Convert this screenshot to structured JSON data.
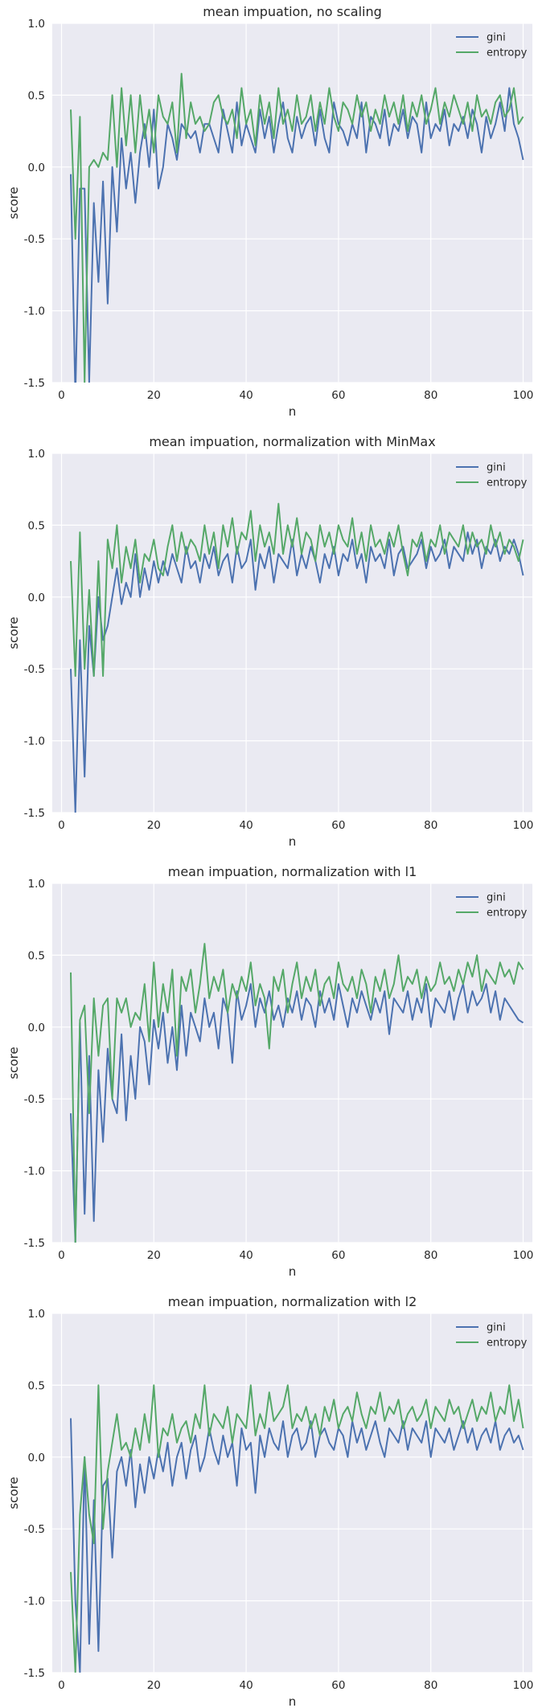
{
  "colors": {
    "background": "#eaeaf2",
    "grid": "#ffffff",
    "gini": "#4c72b0",
    "entropy": "#55a868"
  },
  "chart_data": [
    {
      "type": "line",
      "title": "mean impuation, no scaling",
      "xlabel": "n",
      "ylabel": "score",
      "xlim": [
        -2,
        102
      ],
      "ylim": [
        -1.5,
        1.0
      ],
      "x_ticks": [
        "0",
        "20",
        "40",
        "60",
        "80",
        "100"
      ],
      "y_ticks": [
        "1.0",
        "0.5",
        "0.0",
        "-0.5",
        "-1.0",
        "-1.5"
      ],
      "grid": true,
      "legend": "top-right",
      "series": [
        {
          "name": "gini",
          "x_start": 2,
          "x_step": 1,
          "values": [
            -0.05,
            -1.6,
            -0.15,
            -0.15,
            -1.5,
            -0.25,
            -0.8,
            -0.1,
            -0.95,
            0.0,
            -0.45,
            0.2,
            -0.15,
            0.1,
            -0.25,
            0.1,
            0.3,
            0.0,
            0.4,
            -0.15,
            0.0,
            0.3,
            0.2,
            0.05,
            0.3,
            0.25,
            0.2,
            0.25,
            0.1,
            0.3,
            0.3,
            0.2,
            0.1,
            0.4,
            0.25,
            0.1,
            0.45,
            0.15,
            0.3,
            0.2,
            0.1,
            0.4,
            0.2,
            0.35,
            0.1,
            0.3,
            0.45,
            0.2,
            0.1,
            0.35,
            0.2,
            0.3,
            0.35,
            0.15,
            0.4,
            0.2,
            0.1,
            0.45,
            0.3,
            0.25,
            0.15,
            0.3,
            0.2,
            0.45,
            0.1,
            0.35,
            0.3,
            0.2,
            0.4,
            0.15,
            0.3,
            0.25,
            0.4,
            0.2,
            0.35,
            0.3,
            0.1,
            0.45,
            0.2,
            0.3,
            0.25,
            0.4,
            0.15,
            0.3,
            0.25,
            0.35,
            0.2,
            0.4,
            0.3,
            0.1,
            0.35,
            0.2,
            0.3,
            0.45,
            0.25,
            0.55,
            0.3,
            0.2,
            0.05
          ]
        },
        {
          "name": "entropy",
          "x_start": 2,
          "x_step": 1,
          "values": [
            0.4,
            -0.5,
            0.35,
            -1.5,
            0.0,
            0.05,
            0.0,
            0.1,
            0.05,
            0.5,
            0.0,
            0.55,
            0.15,
            0.5,
            0.1,
            0.5,
            0.2,
            0.4,
            0.1,
            0.5,
            0.35,
            0.3,
            0.45,
            0.1,
            0.65,
            0.2,
            0.45,
            0.3,
            0.35,
            0.25,
            0.3,
            0.45,
            0.5,
            0.35,
            0.3,
            0.4,
            0.2,
            0.55,
            0.3,
            0.4,
            0.15,
            0.5,
            0.3,
            0.45,
            0.2,
            0.55,
            0.3,
            0.4,
            0.25,
            0.5,
            0.3,
            0.35,
            0.5,
            0.25,
            0.45,
            0.3,
            0.55,
            0.35,
            0.25,
            0.45,
            0.4,
            0.3,
            0.5,
            0.35,
            0.45,
            0.25,
            0.4,
            0.3,
            0.5,
            0.35,
            0.45,
            0.3,
            0.5,
            0.25,
            0.45,
            0.35,
            0.5,
            0.3,
            0.4,
            0.55,
            0.3,
            0.45,
            0.35,
            0.5,
            0.4,
            0.3,
            0.45,
            0.25,
            0.5,
            0.35,
            0.4,
            0.3,
            0.45,
            0.5,
            0.35,
            0.4,
            0.55,
            0.3,
            0.35
          ]
        }
      ]
    },
    {
      "type": "line",
      "title": "mean impuation, normalization with MinMax",
      "xlabel": "n",
      "ylabel": "score",
      "xlim": [
        -2,
        102
      ],
      "ylim": [
        -1.5,
        1.0
      ],
      "x_ticks": [
        "0",
        "20",
        "40",
        "60",
        "80",
        "100"
      ],
      "y_ticks": [
        "1.0",
        "0.5",
        "0.0",
        "-0.5",
        "-1.0",
        "-1.5"
      ],
      "grid": true,
      "legend": "top-right",
      "series": [
        {
          "name": "gini",
          "x_start": 2,
          "x_step": 1,
          "values": [
            -0.5,
            -1.5,
            -0.3,
            -1.25,
            -0.2,
            -0.55,
            0.0,
            -0.3,
            -0.2,
            0.0,
            0.2,
            -0.05,
            0.1,
            0.0,
            0.3,
            0.0,
            0.2,
            0.05,
            0.25,
            0.1,
            0.25,
            0.15,
            0.3,
            0.2,
            0.1,
            0.35,
            0.2,
            0.25,
            0.1,
            0.3,
            0.2,
            0.35,
            0.15,
            0.25,
            0.3,
            0.1,
            0.35,
            0.2,
            0.25,
            0.4,
            0.05,
            0.3,
            0.2,
            0.35,
            0.1,
            0.3,
            0.25,
            0.2,
            0.4,
            0.15,
            0.3,
            0.2,
            0.35,
            0.25,
            0.1,
            0.3,
            0.2,
            0.35,
            0.15,
            0.3,
            0.25,
            0.4,
            0.2,
            0.3,
            0.1,
            0.35,
            0.25,
            0.3,
            0.2,
            0.4,
            0.15,
            0.3,
            0.35,
            0.2,
            0.25,
            0.3,
            0.4,
            0.2,
            0.35,
            0.25,
            0.3,
            0.4,
            0.2,
            0.35,
            0.3,
            0.25,
            0.45,
            0.3,
            0.4,
            0.2,
            0.35,
            0.3,
            0.4,
            0.25,
            0.35,
            0.3,
            0.4,
            0.3,
            0.15
          ]
        },
        {
          "name": "entropy",
          "x_start": 2,
          "x_step": 1,
          "values": [
            0.25,
            -0.55,
            0.45,
            -0.5,
            0.05,
            -0.55,
            0.25,
            -0.55,
            0.4,
            0.2,
            0.5,
            0.1,
            0.35,
            0.2,
            0.4,
            0.1,
            0.3,
            0.25,
            0.4,
            0.2,
            0.15,
            0.35,
            0.5,
            0.25,
            0.45,
            0.3,
            0.4,
            0.35,
            0.25,
            0.5,
            0.3,
            0.45,
            0.2,
            0.5,
            0.35,
            0.55,
            0.3,
            0.45,
            0.4,
            0.6,
            0.25,
            0.5,
            0.35,
            0.45,
            0.3,
            0.65,
            0.3,
            0.5,
            0.35,
            0.55,
            0.3,
            0.45,
            0.4,
            0.25,
            0.5,
            0.35,
            0.45,
            0.3,
            0.5,
            0.4,
            0.35,
            0.55,
            0.3,
            0.45,
            0.25,
            0.5,
            0.35,
            0.4,
            0.3,
            0.45,
            0.35,
            0.5,
            0.3,
            0.15,
            0.4,
            0.35,
            0.45,
            0.25,
            0.4,
            0.35,
            0.5,
            0.3,
            0.45,
            0.4,
            0.35,
            0.5,
            0.3,
            0.45,
            0.35,
            0.4,
            0.3,
            0.5,
            0.35,
            0.45,
            0.3,
            0.4,
            0.35,
            0.25,
            0.4
          ]
        }
      ]
    },
    {
      "type": "line",
      "title": "mean impuation, normalization with l1",
      "xlabel": "n",
      "ylabel": "score",
      "xlim": [
        -2,
        102
      ],
      "ylim": [
        -1.5,
        1.0
      ],
      "x_ticks": [
        "0",
        "20",
        "40",
        "60",
        "80",
        "100"
      ],
      "y_ticks": [
        "1.0",
        "0.5",
        "0.0",
        "-0.5",
        "-1.0",
        "-1.5"
      ],
      "grid": true,
      "legend": "top-right",
      "series": [
        {
          "name": "gini",
          "x_start": 2,
          "x_step": 1,
          "values": [
            -0.6,
            -1.5,
            0.03,
            -1.3,
            -0.2,
            -1.35,
            -0.3,
            -0.8,
            -0.15,
            -0.5,
            -0.6,
            -0.05,
            -0.65,
            -0.2,
            -0.5,
            0.0,
            -0.1,
            -0.4,
            0.05,
            -0.15,
            0.1,
            -0.25,
            0.0,
            -0.3,
            0.15,
            -0.2,
            0.1,
            0.0,
            -0.1,
            0.2,
            0.0,
            0.1,
            -0.15,
            0.2,
            0.1,
            -0.25,
            0.25,
            0.05,
            0.15,
            0.3,
            0.0,
            0.2,
            0.1,
            0.25,
            0.05,
            0.15,
            0.0,
            0.2,
            0.1,
            0.25,
            0.05,
            0.2,
            0.15,
            0.0,
            0.25,
            0.1,
            0.2,
            0.05,
            0.3,
            0.15,
            0.0,
            0.2,
            0.1,
            0.25,
            0.15,
            0.05,
            0.2,
            0.1,
            0.25,
            -0.05,
            0.2,
            0.15,
            0.1,
            0.25,
            0.05,
            0.2,
            0.1,
            0.3,
            0.0,
            0.2,
            0.15,
            0.1,
            0.25,
            0.05,
            0.2,
            0.3,
            0.1,
            0.25,
            0.15,
            0.2,
            0.3,
            0.1,
            0.25,
            0.05,
            0.2,
            0.15,
            0.1,
            0.05,
            0.03
          ]
        },
        {
          "name": "entropy",
          "x_start": 2,
          "x_step": 1,
          "values": [
            0.38,
            -1.5,
            0.05,
            0.15,
            -0.6,
            0.2,
            -0.2,
            0.15,
            0.2,
            -0.5,
            0.2,
            0.1,
            0.2,
            0.0,
            0.1,
            0.05,
            0.3,
            -0.1,
            0.45,
            0.0,
            0.3,
            0.1,
            0.4,
            -0.2,
            0.35,
            0.25,
            0.4,
            0.1,
            0.3,
            0.58,
            0.2,
            0.35,
            0.25,
            0.4,
            0.1,
            0.3,
            0.2,
            0.35,
            0.25,
            0.45,
            0.15,
            0.3,
            0.2,
            -0.15,
            0.35,
            0.25,
            0.4,
            0.1,
            0.3,
            0.45,
            0.2,
            0.35,
            0.25,
            0.4,
            0.15,
            0.3,
            0.35,
            0.2,
            0.45,
            0.3,
            0.25,
            0.35,
            0.2,
            0.4,
            0.3,
            0.1,
            0.35,
            0.25,
            0.4,
            0.2,
            0.3,
            0.5,
            0.25,
            0.35,
            0.3,
            0.4,
            0.2,
            0.35,
            0.25,
            0.3,
            0.45,
            0.3,
            0.35,
            0.25,
            0.4,
            0.3,
            0.45,
            0.35,
            0.5,
            0.25,
            0.4,
            0.35,
            0.3,
            0.45,
            0.35,
            0.4,
            0.3,
            0.45,
            0.4
          ]
        }
      ]
    },
    {
      "type": "line",
      "title": "mean impuation, normalization with l2",
      "xlabel": "n",
      "ylabel": "score",
      "xlim": [
        -2,
        102
      ],
      "ylim": [
        -1.5,
        1.0
      ],
      "x_ticks": [
        "0",
        "20",
        "40",
        "60",
        "80",
        "100"
      ],
      "y_ticks": [
        "1.0",
        "0.5",
        "0.0",
        "-0.5",
        "-1.0",
        "-1.5"
      ],
      "grid": true,
      "legend": "top-right",
      "series": [
        {
          "name": "gini",
          "x_start": 2,
          "x_step": 1,
          "values": [
            0.27,
            -1.0,
            -1.5,
            0.0,
            -1.3,
            -0.3,
            -1.35,
            -0.2,
            -0.15,
            -0.7,
            -0.1,
            0.0,
            -0.2,
            0.05,
            -0.35,
            -0.05,
            -0.25,
            0.0,
            -0.15,
            0.05,
            -0.1,
            0.1,
            -0.2,
            0.0,
            0.1,
            -0.15,
            0.05,
            0.15,
            -0.1,
            0.0,
            0.2,
            0.05,
            -0.05,
            0.15,
            0.0,
            0.1,
            -0.2,
            0.2,
            0.05,
            0.1,
            -0.25,
            0.15,
            0.0,
            0.2,
            0.1,
            0.05,
            0.25,
            0.0,
            0.15,
            0.2,
            0.05,
            0.1,
            0.25,
            0.0,
            0.15,
            0.2,
            0.1,
            0.05,
            0.2,
            0.15,
            0.0,
            0.25,
            0.1,
            0.2,
            0.05,
            0.15,
            0.25,
            0.1,
            0.0,
            0.2,
            0.15,
            0.1,
            0.25,
            0.05,
            0.2,
            0.15,
            0.1,
            0.25,
            0.0,
            0.2,
            0.15,
            0.1,
            0.2,
            0.05,
            0.15,
            0.25,
            0.1,
            0.2,
            0.05,
            0.15,
            0.2,
            0.1,
            0.25,
            0.05,
            0.15,
            0.2,
            0.1,
            0.15,
            0.05
          ]
        },
        {
          "name": "entropy",
          "x_start": 2,
          "x_step": 1,
          "values": [
            -0.8,
            -1.5,
            -0.4,
            0.0,
            -0.4,
            -0.6,
            0.5,
            -0.5,
            -0.1,
            0.1,
            0.3,
            0.05,
            0.1,
            0.0,
            0.2,
            0.05,
            0.3,
            0.1,
            0.5,
            0.0,
            0.2,
            0.15,
            0.3,
            0.1,
            0.2,
            0.25,
            0.1,
            0.3,
            0.2,
            0.5,
            0.15,
            0.3,
            0.25,
            0.2,
            0.35,
            0.1,
            0.3,
            0.25,
            0.2,
            0.5,
            0.15,
            0.3,
            0.2,
            0.45,
            0.25,
            0.3,
            0.35,
            0.5,
            0.2,
            0.3,
            0.25,
            0.35,
            0.2,
            0.3,
            0.15,
            0.35,
            0.25,
            0.4,
            0.2,
            0.3,
            0.35,
            0.25,
            0.45,
            0.3,
            0.2,
            0.35,
            0.3,
            0.45,
            0.25,
            0.35,
            0.3,
            0.4,
            0.2,
            0.3,
            0.35,
            0.25,
            0.3,
            0.4,
            0.2,
            0.35,
            0.3,
            0.25,
            0.4,
            0.3,
            0.35,
            0.2,
            0.3,
            0.4,
            0.25,
            0.35,
            0.3,
            0.45,
            0.25,
            0.35,
            0.3,
            0.5,
            0.25,
            0.4,
            0.2
          ]
        }
      ]
    }
  ]
}
